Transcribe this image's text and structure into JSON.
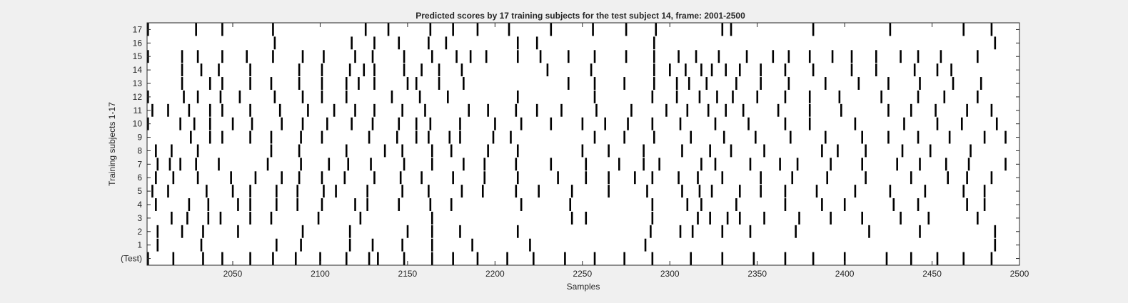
{
  "chart_data": {
    "type": "heatmap",
    "title": "Predicted scores by 17 training subjects for the test subject 14, frame: 2001-2500",
    "xlabel": "Samples",
    "ylabel": "Training subjects 1-17",
    "xlim": [
      2001,
      2500
    ],
    "xticks": [
      2050,
      2100,
      2150,
      2200,
      2250,
      2300,
      2350,
      2400,
      2450,
      2500
    ],
    "rows": [
      "(Test)",
      "1",
      "2",
      "3",
      "4",
      "5",
      "6",
      "7",
      "8",
      "9",
      "10",
      "11",
      "12",
      "13",
      "14",
      "15",
      "16",
      "17"
    ],
    "background_color": "#ffffff",
    "mark_color": "#000000",
    "events": [
      [
        2001,
        2016,
        2033,
        2044,
        2060,
        2073,
        2086,
        2100,
        2115,
        2128,
        2133,
        2148,
        2164,
        2176,
        2190,
        2207,
        2222,
        2240,
        2257,
        2274,
        2290,
        2312,
        2330,
        2348,
        2366,
        2382,
        2400,
        2424,
        2438,
        2453,
        2468,
        2484
      ],
      [
        2007,
        2032,
        2075,
        2089,
        2117,
        2130,
        2147,
        2164,
        2187,
        2220,
        2286,
        2486
      ],
      [
        2007,
        2021,
        2033,
        2053,
        2090,
        2117,
        2150,
        2164,
        2180,
        2213,
        2289,
        2306,
        2313,
        2330,
        2346,
        2372,
        2414,
        2443,
        2486
      ],
      [
        2015,
        2024,
        2036,
        2043,
        2060,
        2072,
        2099,
        2123,
        2164,
        2244,
        2252,
        2290,
        2316,
        2323,
        2333,
        2340,
        2354,
        2374,
        2392,
        2410,
        2432,
        2448,
        2476
      ],
      [
        2006,
        2025,
        2036,
        2053,
        2060,
        2075,
        2087,
        2101,
        2120,
        2127,
        2145,
        2163,
        2175,
        2215,
        2243,
        2290,
        2310,
        2318,
        2338,
        2366,
        2387,
        2400,
        2428,
        2442,
        2470,
        2480
      ],
      [
        2004,
        2013,
        2035,
        2050,
        2060,
        2075,
        2087,
        2102,
        2109,
        2127,
        2147,
        2162,
        2181,
        2193,
        2212,
        2225,
        2244,
        2265,
        2287,
        2307,
        2317,
        2324,
        2340,
        2352,
        2366,
        2384,
        2406,
        2426,
        2446,
        2468,
        2480
      ],
      [
        2006,
        2016,
        2030,
        2049,
        2063,
        2078,
        2088,
        2101,
        2114,
        2131,
        2146,
        2158,
        2176,
        2194,
        2213,
        2236,
        2252,
        2265,
        2280,
        2290,
        2305,
        2316,
        2330,
        2352,
        2370,
        2390,
        2412,
        2438,
        2459,
        2470,
        2484
      ],
      [
        2007,
        2014,
        2020,
        2029,
        2042,
        2070,
        2089,
        2105,
        2116,
        2129,
        2148,
        2164,
        2182,
        2194,
        2212,
        2232,
        2252,
        2271,
        2285,
        2294,
        2318,
        2326,
        2346,
        2363,
        2373,
        2392,
        2410,
        2430,
        2443,
        2458,
        2471,
        2492
      ],
      [
        2006,
        2015,
        2030,
        2072,
        2088,
        2115,
        2137,
        2147,
        2164,
        2175,
        2196,
        2213,
        2250,
        2265,
        2285,
        2307,
        2323,
        2335,
        2354,
        2387,
        2396,
        2412,
        2433,
        2449,
        2472
      ],
      [
        2026,
        2037,
        2044,
        2060,
        2072,
        2089,
        2101,
        2128,
        2144,
        2155,
        2162,
        2174,
        2180,
        2199,
        2209,
        2257,
        2274,
        2291,
        2312,
        2331,
        2349,
        2369,
        2389,
        2410,
        2425,
        2442,
        2460,
        2480,
        2492
      ],
      [
        2001,
        2020,
        2028,
        2037,
        2050,
        2061,
        2078,
        2090,
        2104,
        2118,
        2130,
        2145,
        2155,
        2163,
        2180,
        2200,
        2215,
        2232,
        2250,
        2263,
        2276,
        2290,
        2306,
        2326,
        2345,
        2366,
        2380,
        2406,
        2434,
        2453,
        2467,
        2487
      ],
      [
        2004,
        2013,
        2025,
        2037,
        2044,
        2060,
        2077,
        2093,
        2108,
        2120,
        2131,
        2147,
        2160,
        2185,
        2196,
        2212,
        2224,
        2238,
        2258,
        2278,
        2298,
        2310,
        2322,
        2332,
        2342,
        2362,
        2380,
        2398,
        2425,
        2438,
        2452,
        2470,
        2484
      ],
      [
        2001,
        2022,
        2030,
        2043,
        2054,
        2074,
        2090,
        2101,
        2115,
        2141,
        2157,
        2173,
        2213,
        2257,
        2290,
        2304,
        2317,
        2327,
        2336,
        2350,
        2366,
        2380,
        2397,
        2421,
        2442,
        2457,
        2476
      ],
      [
        2021,
        2037,
        2044,
        2060,
        2072,
        2088,
        2101,
        2115,
        2122,
        2131,
        2150,
        2155,
        2168,
        2182,
        2242,
        2257,
        2274,
        2291,
        2304,
        2311,
        2321,
        2338,
        2352,
        2368,
        2389,
        2408,
        2425,
        2443,
        2462,
        2478
      ],
      [
        2021,
        2032,
        2042,
        2060,
        2088,
        2101,
        2117,
        2125,
        2131,
        2148,
        2158,
        2168,
        2181,
        2230,
        2255,
        2291,
        2300,
        2309,
        2318,
        2324,
        2332,
        2340,
        2352,
        2366,
        2382,
        2404,
        2418,
        2440,
        2453,
        2461
      ],
      [
        2001,
        2021,
        2030,
        2044,
        2058,
        2073,
        2090,
        2102,
        2120,
        2130,
        2148,
        2164,
        2178,
        2186,
        2195,
        2213,
        2226,
        2242,
        2257,
        2275,
        2291,
        2305,
        2315,
        2328,
        2344,
        2359,
        2368,
        2380,
        2393,
        2404,
        2418,
        2432,
        2442,
        2455,
        2476
      ],
      [
        2074,
        2118,
        2131,
        2145,
        2162,
        2172,
        2213,
        2224,
        2291,
        2486
      ],
      [
        2001,
        2029,
        2044,
        2073,
        2126,
        2139,
        2163,
        2176,
        2190,
        2208,
        2232,
        2256,
        2275,
        2292,
        2330,
        2335,
        2382,
        2426,
        2468,
        2484
      ]
    ]
  }
}
